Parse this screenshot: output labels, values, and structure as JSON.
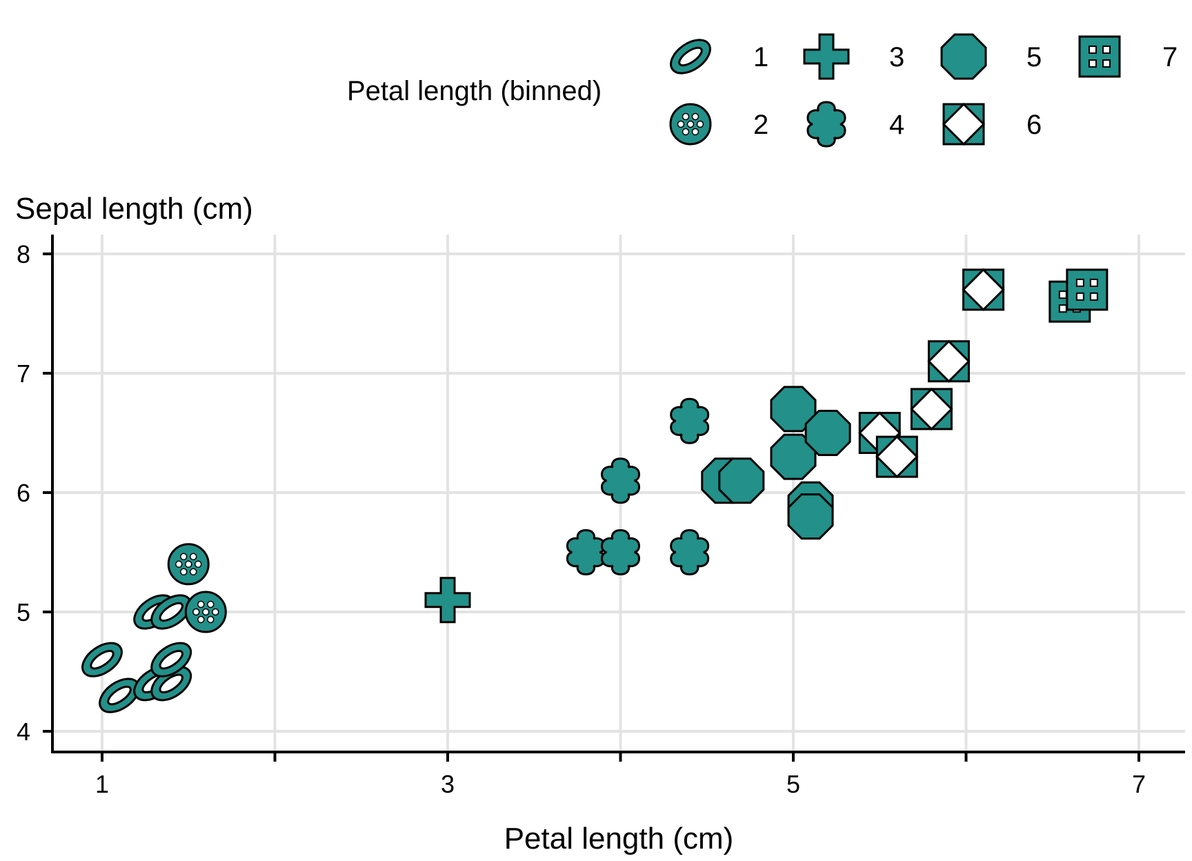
{
  "chart_data": {
    "type": "scatter",
    "title": "",
    "xlabel": "Petal length (cm)",
    "ylabel": "Sepal length (cm)",
    "xlim": [
      0.7,
      7.3
    ],
    "ylim": [
      3.8,
      8.2
    ],
    "x_ticks": [
      1,
      2,
      3,
      4,
      5,
      6,
      7
    ],
    "x_tick_labels": [
      "1",
      "",
      "3",
      "",
      "5",
      "",
      "7"
    ],
    "y_ticks": [
      4,
      5,
      6,
      7,
      8
    ],
    "y_tick_labels": [
      "4",
      "5",
      "6",
      "7",
      "8"
    ],
    "grid": true,
    "legend": {
      "title": "Petal length (binned)",
      "placement": "top",
      "entries": [
        {
          "label": "1",
          "shape": "ring-ellipse"
        },
        {
          "label": "2",
          "shape": "dotted-circle"
        },
        {
          "label": "3",
          "shape": "plus"
        },
        {
          "label": "4",
          "shape": "flower"
        },
        {
          "label": "5",
          "shape": "octagon"
        },
        {
          "label": "6",
          "shape": "square-diamond"
        },
        {
          "label": "7",
          "shape": "square-grid"
        }
      ]
    },
    "marker_color": "#239089",
    "marker_stroke": "#000000",
    "points": [
      {
        "x": 1.0,
        "y": 4.6,
        "bin": 1
      },
      {
        "x": 1.1,
        "y": 4.3,
        "bin": 1
      },
      {
        "x": 1.3,
        "y": 4.4,
        "bin": 1
      },
      {
        "x": 1.4,
        "y": 4.4,
        "bin": 1
      },
      {
        "x": 1.4,
        "y": 4.6,
        "bin": 1
      },
      {
        "x": 1.3,
        "y": 5.0,
        "bin": 1
      },
      {
        "x": 1.4,
        "y": 5.0,
        "bin": 1
      },
      {
        "x": 1.5,
        "y": 5.4,
        "bin": 2
      },
      {
        "x": 1.6,
        "y": 5.0,
        "bin": 2
      },
      {
        "x": 3.0,
        "y": 5.1,
        "bin": 3
      },
      {
        "x": 3.8,
        "y": 5.5,
        "bin": 4
      },
      {
        "x": 4.0,
        "y": 5.5,
        "bin": 4
      },
      {
        "x": 4.0,
        "y": 6.1,
        "bin": 4
      },
      {
        "x": 4.4,
        "y": 5.5,
        "bin": 4
      },
      {
        "x": 4.4,
        "y": 6.6,
        "bin": 4
      },
      {
        "x": 4.6,
        "y": 6.1,
        "bin": 5
      },
      {
        "x": 4.7,
        "y": 6.1,
        "bin": 5
      },
      {
        "x": 5.0,
        "y": 6.3,
        "bin": 5
      },
      {
        "x": 5.0,
        "y": 6.7,
        "bin": 5
      },
      {
        "x": 5.1,
        "y": 5.9,
        "bin": 5
      },
      {
        "x": 5.1,
        "y": 5.8,
        "bin": 5
      },
      {
        "x": 5.2,
        "y": 6.5,
        "bin": 5
      },
      {
        "x": 5.5,
        "y": 6.5,
        "bin": 6
      },
      {
        "x": 5.6,
        "y": 6.3,
        "bin": 6
      },
      {
        "x": 5.8,
        "y": 6.7,
        "bin": 6
      },
      {
        "x": 5.9,
        "y": 7.1,
        "bin": 6
      },
      {
        "x": 6.1,
        "y": 7.7,
        "bin": 6
      },
      {
        "x": 6.6,
        "y": 7.6,
        "bin": 7
      },
      {
        "x": 6.7,
        "y": 7.7,
        "bin": 7
      }
    ]
  }
}
